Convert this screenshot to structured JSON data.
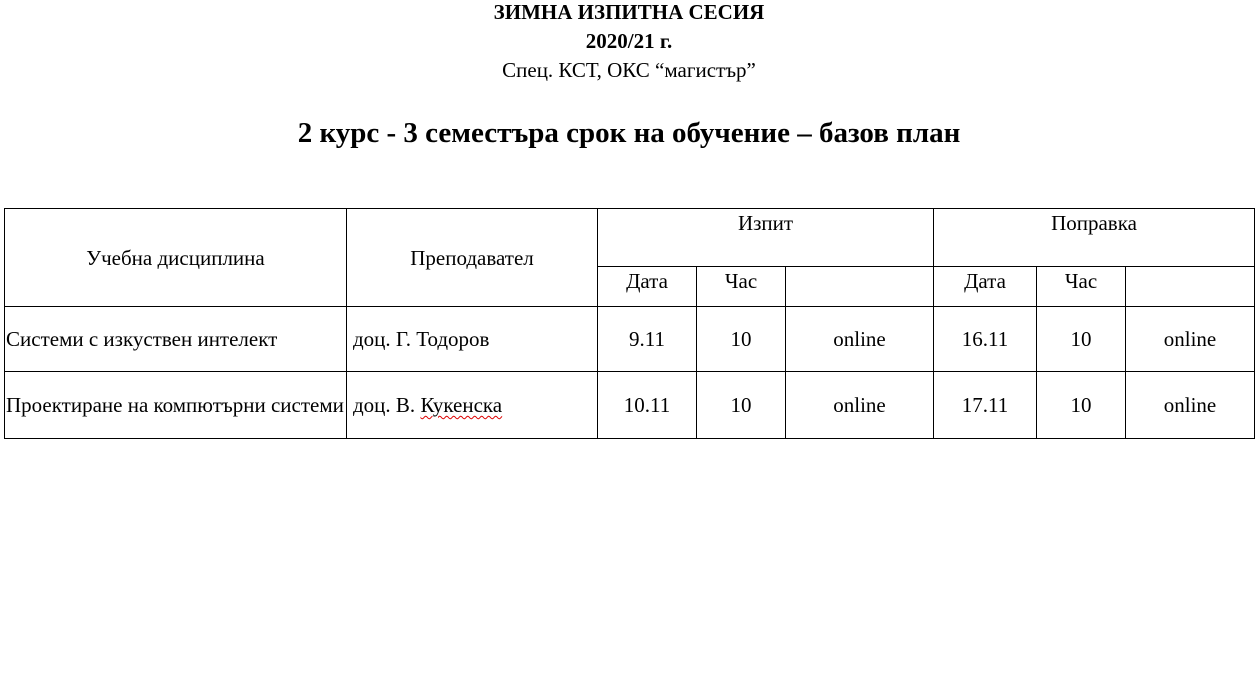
{
  "header": {
    "line1": "ЗИМНА ИЗПИТНА СЕСИЯ",
    "line2": "2020/21 г.",
    "line3": "Спец. КСТ, ОКС “магистър”",
    "subtitle": "2 курс - 3 семестъра срок на обучение – базов план"
  },
  "table": {
    "headers": {
      "discipline": "Учебна дисциплина",
      "teacher": "Преподавател",
      "exam": "Изпит",
      "retake": "Поправка",
      "date": "Дата",
      "hour": "Час"
    },
    "rows": [
      {
        "discipline": "Системи с изкуствен интелект",
        "teacher": "доц. Г. Тодоров",
        "exam_date": "9.11",
        "exam_hour": "10",
        "exam_mode": "online",
        "retake_date": "16.11",
        "retake_hour": "10",
        "retake_mode": "online"
      },
      {
        "discipline": "Проектиране на компютърни системи",
        "teacher_prefix": "доц. В. ",
        "teacher_surname": "Кукенска",
        "exam_date": "10.11",
        "exam_hour": "10",
        "exam_mode": "online",
        "retake_date": "17.11",
        "retake_hour": "10",
        "retake_mode": "online"
      }
    ]
  },
  "colors": {
    "spellcheck_underline": "#dd0000"
  }
}
